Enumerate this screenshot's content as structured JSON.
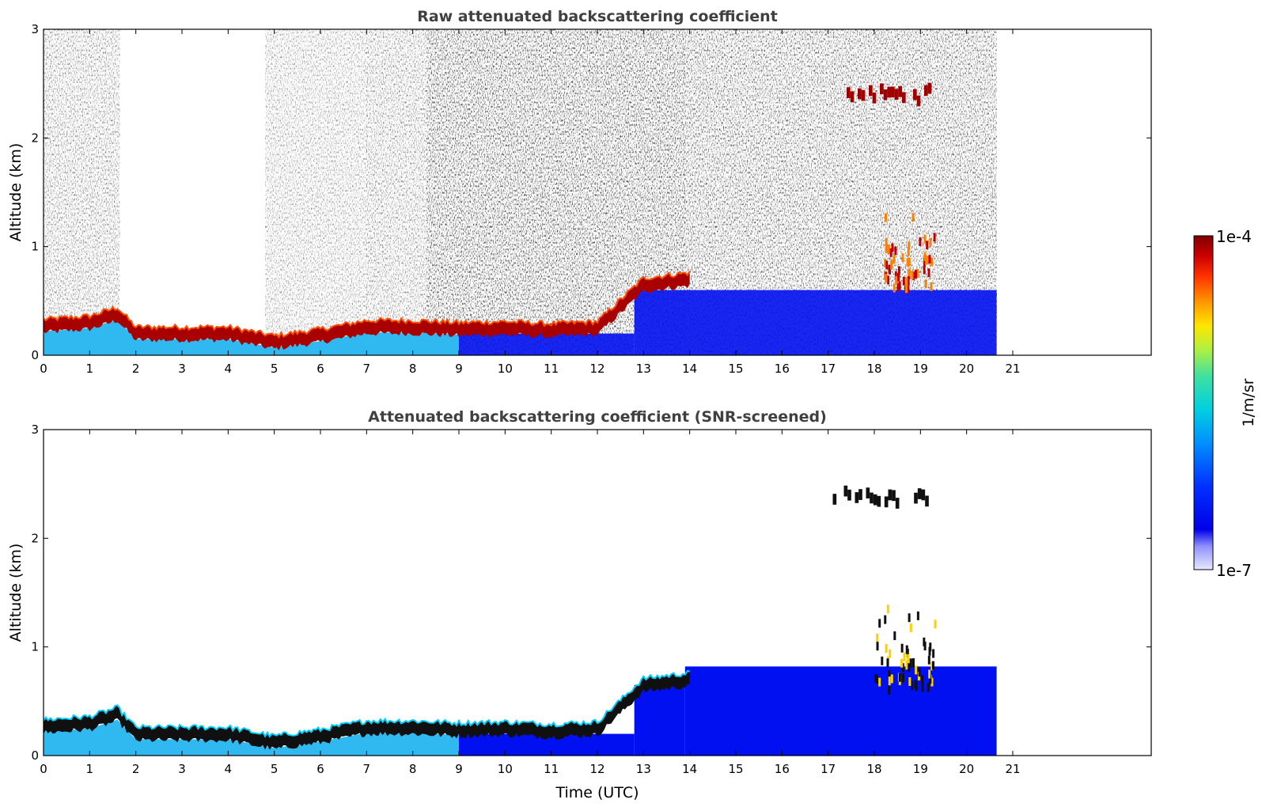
{
  "chart_data": [
    {
      "type": "heatmap",
      "title": "Raw attenuated backscattering coefficient",
      "xlabel": "",
      "ylabel": "Altitude (km)",
      "xlim": [
        0,
        24
      ],
      "ylim": [
        0,
        3
      ],
      "xticks": [
        "0",
        "1",
        "2",
        "3",
        "4",
        "5",
        "6",
        "7",
        "8",
        "9",
        "10",
        "11",
        "12",
        "13",
        "14",
        "15",
        "16",
        "17",
        "18",
        "19",
        "20",
        "21"
      ],
      "yticks": [
        "0",
        "1",
        "2",
        "3"
      ],
      "data_end_time": 20.65,
      "features": [
        {
          "kind": "boundary_layer_top",
          "time": [
            0,
            1,
            1.6,
            2,
            4,
            5,
            6,
            7,
            8,
            9,
            10,
            11,
            12,
            12.5,
            13,
            14
          ],
          "altitude": [
            0.27,
            0.3,
            0.38,
            0.2,
            0.2,
            0.12,
            0.18,
            0.26,
            0.26,
            0.24,
            0.25,
            0.23,
            0.25,
            0.45,
            0.65,
            0.7
          ]
        },
        {
          "kind": "cloud_layer",
          "time_start": 17.4,
          "time_end": 19.2,
          "altitude": 2.4
        },
        {
          "kind": "cloud_plume",
          "time_start": 18.2,
          "time_end": 19.3,
          "altitude_min": 0.6,
          "altitude_max": 1.35
        }
      ]
    },
    {
      "type": "heatmap",
      "title": "Attenuated backscattering coefficient (SNR-screened)",
      "xlabel": "Time (UTC)",
      "ylabel": "Altitude (km)",
      "xlim": [
        0,
        24
      ],
      "ylim": [
        0,
        3
      ],
      "xticks": [
        "0",
        "1",
        "2",
        "3",
        "4",
        "5",
        "6",
        "7",
        "8",
        "9",
        "10",
        "11",
        "12",
        "13",
        "14",
        "15",
        "16",
        "17",
        "18",
        "19",
        "20",
        "21"
      ],
      "yticks": [
        "0",
        "1",
        "2",
        "3"
      ],
      "data_end_time": 20.65,
      "features": [
        {
          "kind": "boundary_layer_top",
          "time": [
            0,
            1,
            1.6,
            2,
            4,
            5,
            6,
            7,
            8,
            9,
            10,
            11,
            12,
            12.5,
            13,
            14
          ],
          "altitude": [
            0.27,
            0.3,
            0.38,
            0.2,
            0.2,
            0.12,
            0.18,
            0.26,
            0.26,
            0.24,
            0.25,
            0.23,
            0.25,
            0.45,
            0.65,
            0.7
          ]
        },
        {
          "kind": "cloud_layer",
          "time_start": 17.1,
          "time_end": 19.2,
          "altitude": 2.38
        },
        {
          "kind": "cloud_plume",
          "time_start": 18.0,
          "time_end": 19.3,
          "altitude_min": 0.6,
          "altitude_max": 1.4
        }
      ]
    }
  ],
  "colorbar": {
    "label": "1/m/sr",
    "max_label": "1e-4",
    "min_label": "1e-7",
    "colormap": [
      "#7f0000",
      "#d40000",
      "#ff4000",
      "#ff9900",
      "#ffe600",
      "#b0f040",
      "#40e0a0",
      "#00c8e8",
      "#0080ff",
      "#0020ff",
      "#0000e8",
      "#e8e8ff"
    ]
  }
}
